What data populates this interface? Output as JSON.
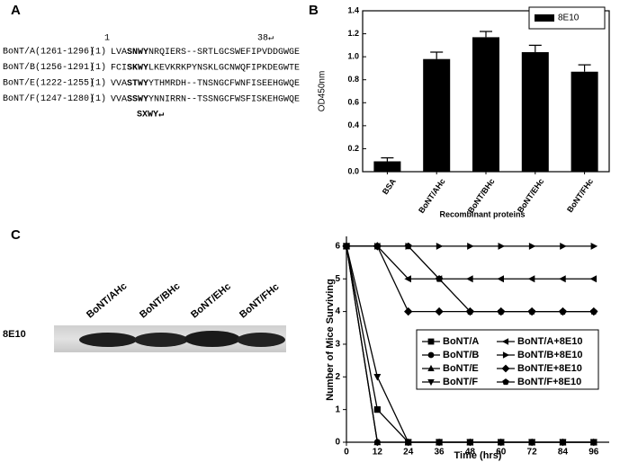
{
  "panel_labels": [
    "A",
    "B",
    "C"
  ],
  "alignment": {
    "ruler": [
      "1",
      "38↵"
    ],
    "rows": [
      {
        "name": "BoNT/A(1261-1296)",
        "start": "(1)",
        "pre": "LVA",
        "motif": "SNWY",
        "post": "NRQIERS--SRTLGCSWEFIPVDDGWGE"
      },
      {
        "name": "BoNT/B(1256-1291)",
        "start": "(1)",
        "pre": "FCI",
        "motif": "SKWY",
        "post": "LKEVKRKPYNSKLGCNWQFIPKDEGWTE"
      },
      {
        "name": "BoNT/E(1222-1255)",
        "start": "(1)",
        "pre": "VVA",
        "motif": "STWY",
        "post": "YTHMRDH--TNSNGCFWNFISEEHGWQE"
      },
      {
        "name": "BoNT/F(1247-1280)",
        "start": "(1)",
        "pre": "VVA",
        "motif": "SSWY",
        "post": "YNNIRRN--TSSNGCFWSFISKEHGWQE"
      }
    ],
    "consensus": "SXWY↵"
  },
  "chart_data": [
    {
      "type": "bar",
      "categories": [
        "BSA",
        "BoNT/AHc",
        "BoNT/BHc",
        "BoNT/EHc",
        "BoNT/FHc"
      ],
      "series": [
        {
          "name": "8E10",
          "color": "#000000",
          "values": [
            0.09,
            0.98,
            1.17,
            1.04,
            0.87
          ],
          "errors": [
            0.03,
            0.06,
            0.05,
            0.06,
            0.06
          ]
        }
      ],
      "ylabel": "OD450nm",
      "xlabel": "Recombinant proteins",
      "ylim": [
        0,
        1.4
      ],
      "yticks": [
        {
          "value": 0,
          "label": "0.0"
        },
        {
          "value": 0.2,
          "label": "0.2"
        },
        {
          "value": 0.4,
          "label": "0.4"
        },
        {
          "value": 0.6,
          "label": "0.6"
        },
        {
          "value": 0.8,
          "label": "0.8"
        },
        {
          "value": 1.0,
          "label": "1.0"
        },
        {
          "value": 1.2,
          "label": "1.2"
        },
        {
          "value": 1.4,
          "label": "1.4"
        }
      ]
    },
    {
      "type": "line",
      "x": [
        0,
        12,
        24,
        36,
        48,
        60,
        72,
        84,
        96
      ],
      "xlim": [
        0,
        102
      ],
      "ylim": [
        0,
        6.3
      ],
      "xticks": [
        0,
        12,
        24,
        36,
        48,
        60,
        72,
        84,
        96
      ],
      "yticks": [
        0,
        1,
        2,
        3,
        4,
        5,
        6
      ],
      "xlabel": "Time (hrs)",
      "ylabel": "Number of Mice Surviving",
      "series": [
        {
          "name": "BoNT/A",
          "color": "#000000",
          "marker": "square",
          "values": [
            6,
            1,
            0,
            0,
            0,
            0,
            0,
            0,
            0
          ]
        },
        {
          "name": "BoNT/B",
          "color": "#000000",
          "marker": "circle",
          "values": [
            6,
            0,
            0,
            0,
            0,
            0,
            0,
            0,
            0
          ]
        },
        {
          "name": "BoNT/E",
          "color": "#000000",
          "marker": "triangle-up",
          "values": [
            6,
            0,
            0,
            0,
            0,
            0,
            0,
            0,
            0
          ]
        },
        {
          "name": "BoNT/F",
          "color": "#000000",
          "marker": "triangle-down",
          "values": [
            6,
            2,
            0,
            0,
            0,
            0,
            0,
            0,
            0
          ]
        },
        {
          "name": "BoNT/A+8E10",
          "color": "#000000",
          "marker": "triangle-left",
          "values": [
            6,
            6,
            5,
            5,
            5,
            5,
            5,
            5,
            5
          ]
        },
        {
          "name": "BoNT/B+8E10",
          "color": "#000000",
          "marker": "triangle-right",
          "values": [
            6,
            6,
            6,
            6,
            6,
            6,
            6,
            6,
            6
          ]
        },
        {
          "name": "BoNT/E+8E10",
          "color": "#000000",
          "marker": "diamond",
          "values": [
            6,
            6,
            4,
            4,
            4,
            4,
            4,
            4,
            4
          ]
        },
        {
          "name": "BoNT/F+8E10",
          "color": "#000000",
          "marker": "pentagon",
          "values": [
            6,
            6,
            6,
            5,
            4,
            4,
            4,
            4,
            4
          ]
        }
      ]
    }
  ],
  "blot": {
    "antibody": "8E10",
    "lanes": [
      "BoNT/AHc",
      "BoNT/BHc",
      "BoNT/EHc",
      "BoNT/FHc"
    ]
  }
}
